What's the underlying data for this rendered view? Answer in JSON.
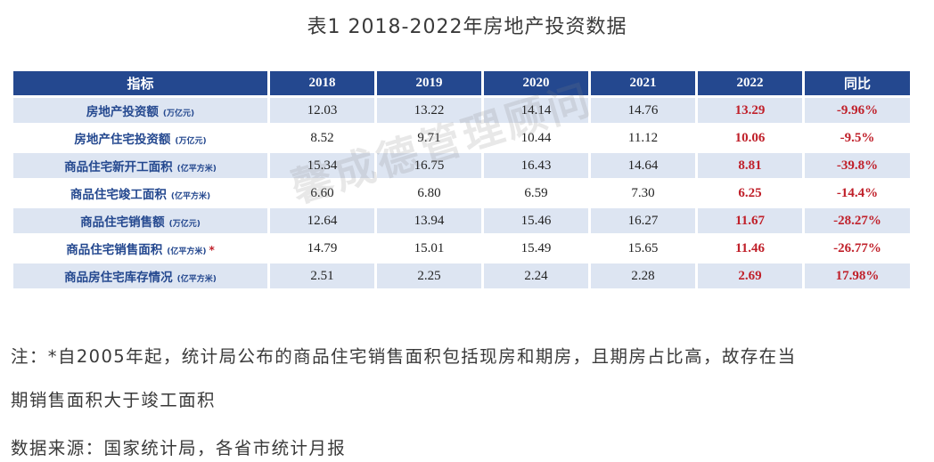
{
  "title": "表1 2018-2022年房地产投资数据",
  "watermark": "馨成德管理顾问",
  "chart_data": {
    "type": "table",
    "title": "表1 2018-2022年房地产投资数据",
    "columns": [
      "指标",
      "2018",
      "2019",
      "2020",
      "2021",
      "2022",
      "同比"
    ],
    "rows": [
      {
        "label": "房地产投资额",
        "unit": "(万亿元)",
        "star": "",
        "values": [
          "12.03",
          "13.22",
          "14.14",
          "14.76",
          "13.29",
          "-9.96%"
        ]
      },
      {
        "label": "房地产住宅投资额",
        "unit": "(万亿元)",
        "star": "",
        "values": [
          "8.52",
          "9.71",
          "10.44",
          "11.12",
          "10.06",
          "-9.5%"
        ]
      },
      {
        "label": "商品住宅新开工面积",
        "unit": "(亿平方米)",
        "star": "",
        "values": [
          "15.34",
          "16.75",
          "16.43",
          "14.64",
          "8.81",
          "-39.8%"
        ]
      },
      {
        "label": "商品住宅竣工面积",
        "unit": "(亿平方米)",
        "star": "",
        "values": [
          "6.60",
          "6.80",
          "6.59",
          "7.30",
          "6.25",
          "-14.4%"
        ]
      },
      {
        "label": "商品住宅销售额",
        "unit": "(万亿元)",
        "star": "",
        "values": [
          "12.64",
          "13.94",
          "15.46",
          "16.27",
          "11.67",
          "-28.27%"
        ]
      },
      {
        "label": "商品住宅销售面积",
        "unit": "(亿平方米)",
        "star": "*",
        "values": [
          "14.79",
          "15.01",
          "15.49",
          "15.65",
          "11.46",
          "-26.77%"
        ]
      },
      {
        "label": "商品房住宅库存情况",
        "unit": "(亿平方米)",
        "star": "",
        "values": [
          "2.51",
          "2.25",
          "2.24",
          "2.28",
          "2.69",
          "17.98%"
        ]
      }
    ],
    "highlight_columns": [
      "2022",
      "同比"
    ],
    "colors": {
      "header_bg": "#24488f",
      "header_text": "#ffffff",
      "label_text": "#24488f",
      "highlight_text": "#c0202a",
      "stripe_bg": "#dde5f2"
    }
  },
  "notes": {
    "line1": "注：*自2005年起，统计局公布的商品住宅销售面积包括现房和期房，且期房占比高，故存在当",
    "line2": "期销售面积大于竣工面积",
    "source": "数据来源：国家统计局，各省市统计月报"
  }
}
